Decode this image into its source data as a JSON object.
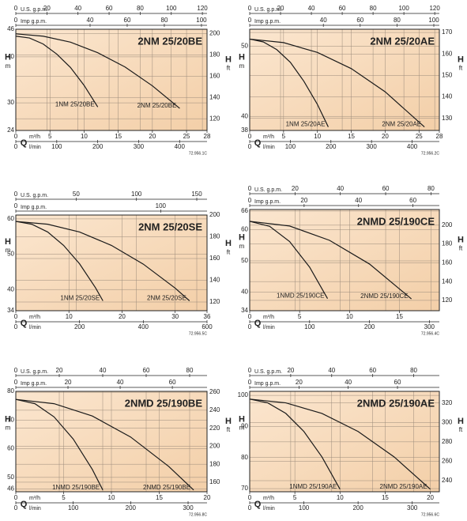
{
  "chart_data": [
    {
      "type": "line",
      "title": "2NM 25/20BE",
      "code": "72.956.1C",
      "y_label": "H",
      "y_unit": "m",
      "y2_label": "H",
      "y2_unit": "ft",
      "x_label": "Q",
      "x_unit": "m³/h",
      "xlim": [
        0,
        28
      ],
      "xticks": [
        0,
        5,
        10,
        15,
        20,
        25,
        28
      ],
      "ylim": [
        24,
        46
      ],
      "yticks": [
        24,
        30,
        40,
        46
      ],
      "y2lim": [
        109,
        204
      ],
      "y2ticks": [
        120,
        140,
        160,
        180,
        200
      ],
      "x_lpm": {
        "label": "l/min",
        "lim": [
          0,
          467
        ],
        "ticks": [
          0,
          100,
          200,
          300,
          400
        ]
      },
      "x_usgpm": {
        "label": "U.S. g.p.m.",
        "lim": [
          0,
          123
        ],
        "ticks": [
          0,
          20,
          40,
          60,
          80,
          100,
          120
        ]
      },
      "x_impgpm": {
        "label": "Imp g.p.m.",
        "lim": [
          0,
          103
        ],
        "ticks": [
          0,
          40,
          60,
          80,
          100
        ]
      },
      "series": [
        {
          "name": "1NM 25/20BE",
          "color": "#1a1a1a",
          "x": [
            0,
            2,
            4,
            6,
            8,
            10,
            12
          ],
          "values": [
            44.5,
            44.1,
            42.8,
            40.6,
            37.7,
            33.8,
            29.1
          ]
        },
        {
          "name": "2NM 25/20BE",
          "color": "#1a1a1a",
          "x": [
            0,
            4,
            8,
            12,
            16,
            20,
            24
          ],
          "values": [
            45,
            44.5,
            43.2,
            40.9,
            37.8,
            33.7,
            28.8
          ]
        }
      ]
    },
    {
      "type": "line",
      "title": "2NM 25/20AE",
      "code": "72.956.2C",
      "y_label": "H",
      "y_unit": "m",
      "y2_label": "H",
      "y2_unit": "ft",
      "x_label": "Q",
      "x_unit": "m³/h",
      "xlim": [
        0,
        28
      ],
      "xticks": [
        0,
        5,
        10,
        15,
        20,
        25,
        28
      ],
      "ylim": [
        38,
        52.4
      ],
      "yticks": [
        38,
        40,
        50
      ],
      "y2lim": [
        124.4,
        171.5
      ],
      "y2ticks": [
        130,
        140,
        150,
        160,
        170
      ],
      "x_lpm": {
        "label": "l/min",
        "lim": [
          0,
          467
        ],
        "ticks": [
          0,
          100,
          200,
          300,
          400
        ]
      },
      "x_usgpm": {
        "label": "U.S. g.p.m.",
        "lim": [
          0,
          123
        ],
        "ticks": [
          0,
          20,
          40,
          60,
          80,
          100,
          120
        ]
      },
      "x_impgpm": {
        "label": "Imp g.p.m.",
        "lim": [
          0,
          103
        ],
        "ticks": [
          0,
          40,
          60,
          80,
          100
        ]
      },
      "series": [
        {
          "name": "1NM 25/20AE",
          "color": "#1a1a1a",
          "x": [
            0,
            2,
            4,
            6,
            8,
            10,
            11.6
          ],
          "values": [
            51,
            50.6,
            49.5,
            47.7,
            45,
            41.7,
            38.5
          ]
        },
        {
          "name": "2NM 25/20AE",
          "color": "#1a1a1a",
          "x": [
            0,
            5,
            10,
            15,
            20,
            25.8
          ],
          "values": [
            51,
            50.5,
            49.1,
            46.8,
            43.5,
            38.5
          ]
        }
      ]
    },
    {
      "type": "line",
      "title": "2NM 25/20SE",
      "code": "72.956.5C",
      "y_label": "H",
      "y_unit": "m",
      "y2_label": "H",
      "y2_unit": "ft",
      "x_label": "Q",
      "x_unit": "m³/h",
      "xlim": [
        0,
        36
      ],
      "xticks": [
        0,
        10,
        20,
        30,
        36
      ],
      "ylim": [
        34,
        61.1
      ],
      "yticks": [
        34,
        40,
        50,
        60
      ],
      "y2lim": [
        112,
        200
      ],
      "y2ticks": [
        120,
        140,
        160,
        180,
        200
      ],
      "x_lpm": {
        "label": "l/min",
        "lim": [
          0,
          600
        ],
        "ticks": [
          0,
          200,
          400,
          600
        ]
      },
      "x_usgpm": {
        "label": "U.S. g.p.m.",
        "lim": [
          0,
          158.5
        ],
        "ticks": [
          0,
          50,
          100,
          150
        ]
      },
      "x_impgpm": {
        "label": "Imp g.p.m.",
        "lim": [
          0,
          132
        ],
        "ticks": [
          0,
          100
        ]
      },
      "series": [
        {
          "name": "1NM 25/20SE",
          "color": "#1a1a1a",
          "x": [
            0,
            3,
            6,
            9,
            12,
            15,
            16.4
          ],
          "values": [
            59.3,
            58.5,
            56.3,
            52.5,
            47.3,
            40.5,
            36.8
          ]
        },
        {
          "name": "2NM 25/20SE",
          "color": "#1a1a1a",
          "x": [
            0,
            6,
            12,
            18,
            24,
            30,
            32.7
          ],
          "values": [
            59.3,
            58.5,
            56.3,
            52.5,
            47.2,
            40.4,
            36.8
          ]
        }
      ]
    },
    {
      "type": "line",
      "title": "2NMD 25/190CE",
      "code": "72.956.4C",
      "y_label": "H",
      "y_unit": "m",
      "y2_label": "H",
      "y2_unit": "ft",
      "x_label": "Q",
      "x_unit": "m³/h",
      "xlim": [
        0,
        19
      ],
      "xticks": [
        0,
        5,
        10,
        15
      ],
      "ylim": [
        34,
        66.5
      ],
      "yticks": [
        34,
        40,
        50,
        60,
        66
      ],
      "y2lim": [
        109,
        216.7
      ],
      "y2ticks": [
        120,
        140,
        160,
        180,
        200
      ],
      "x_lpm": {
        "label": "l/min",
        "lim": [
          0,
          316.7
        ],
        "ticks": [
          0,
          100,
          200,
          300
        ]
      },
      "x_usgpm": {
        "label": "U.S. g.p.m.",
        "lim": [
          0,
          83.7
        ],
        "ticks": [
          0,
          20,
          40,
          60,
          80
        ]
      },
      "x_impgpm": {
        "label": "Imp g.p.m.",
        "lim": [
          0,
          69.7
        ],
        "ticks": [
          0,
          20,
          40,
          60
        ]
      },
      "series": [
        {
          "name": "1NMD 25/190CE",
          "color": "#1a1a1a",
          "x": [
            0,
            2,
            4,
            6,
            7.8
          ],
          "values": [
            62.7,
            61.1,
            56.2,
            48,
            37.9
          ]
        },
        {
          "name": "2NMD 25/190CE",
          "color": "#1a1a1a",
          "x": [
            0,
            4,
            8,
            12,
            16.2
          ],
          "values": [
            62.7,
            61.2,
            56.6,
            49,
            37.8
          ]
        }
      ]
    },
    {
      "type": "line",
      "title": "2NMD 25/190BE",
      "code": "72.956.8C",
      "y_label": "H",
      "y_unit": "m",
      "y2_label": "H",
      "y2_unit": "ft",
      "x_label": "Q",
      "x_unit": "m³/h",
      "xlim": [
        0,
        20
      ],
      "xticks": [
        0,
        5,
        10,
        15,
        20
      ],
      "ylim": [
        45,
        80
      ],
      "yticks": [
        46,
        50,
        60,
        70,
        80
      ],
      "y2lim": [
        149.4,
        261
      ],
      "y2ticks": [
        160,
        180,
        200,
        220,
        240,
        260
      ],
      "x_lpm": {
        "label": "l/min",
        "lim": [
          0,
          333
        ],
        "ticks": [
          0,
          100,
          200,
          300
        ]
      },
      "x_usgpm": {
        "label": "U.S. g.p.m.",
        "lim": [
          0,
          88
        ],
        "ticks": [
          0,
          20,
          40,
          60,
          80
        ]
      },
      "x_impgpm": {
        "label": "Imp g.p.m.",
        "lim": [
          0,
          73.3
        ],
        "ticks": [
          0,
          20,
          40,
          60
        ]
      },
      "series": [
        {
          "name": "1NMD 25/190BE",
          "color": "#1a1a1a",
          "x": [
            0,
            2,
            4,
            6,
            8,
            9.1
          ],
          "values": [
            77.2,
            75.7,
            71.1,
            63.4,
            52.8,
            45.6
          ]
        },
        {
          "name": "2NMD 25/190BE",
          "color": "#1a1a1a",
          "x": [
            0,
            4,
            8,
            12,
            16,
            18.6
          ],
          "values": [
            77.2,
            75.7,
            71.4,
            64.1,
            53.8,
            45.6
          ]
        }
      ]
    },
    {
      "type": "line",
      "title": "2NMD 25/190AE",
      "code": "72.956.6C",
      "y_label": "H",
      "y_unit": "m",
      "y2_label": "H",
      "y2_unit": "ft",
      "x_label": "Q",
      "x_unit": "m³/h",
      "xlim": [
        0,
        21
      ],
      "xticks": [
        0,
        5,
        10,
        15,
        20
      ],
      "ylim": [
        69,
        101.3
      ],
      "yticks": [
        70,
        80,
        90,
        100
      ],
      "y2lim": [
        228.6,
        332
      ],
      "y2ticks": [
        240,
        260,
        280,
        300,
        320
      ],
      "x_lpm": {
        "label": "l/min",
        "lim": [
          0,
          350
        ],
        "ticks": [
          0,
          100,
          200,
          300
        ]
      },
      "x_usgpm": {
        "label": "U.S. g.p.m.",
        "lim": [
          0,
          92.5
        ],
        "ticks": [
          0,
          20,
          40,
          60,
          80
        ]
      },
      "x_impgpm": {
        "label": "Imp g.p.m.",
        "lim": [
          0,
          77
        ],
        "ticks": [
          0,
          20,
          40,
          60
        ]
      },
      "series": [
        {
          "name": "1NMD 25/190AE",
          "color": "#1a1a1a",
          "x": [
            0,
            2,
            4,
            6,
            8,
            10
          ],
          "values": [
            98.8,
            97.6,
            94.2,
            88.4,
            80.2,
            69.8
          ]
        },
        {
          "name": "2NMD 25/190AE",
          "color": "#1a1a1a",
          "x": [
            0,
            4,
            8,
            12,
            16,
            20
          ],
          "values": [
            98.8,
            97.6,
            94.2,
            88.4,
            80.2,
            69.8
          ]
        }
      ]
    }
  ]
}
